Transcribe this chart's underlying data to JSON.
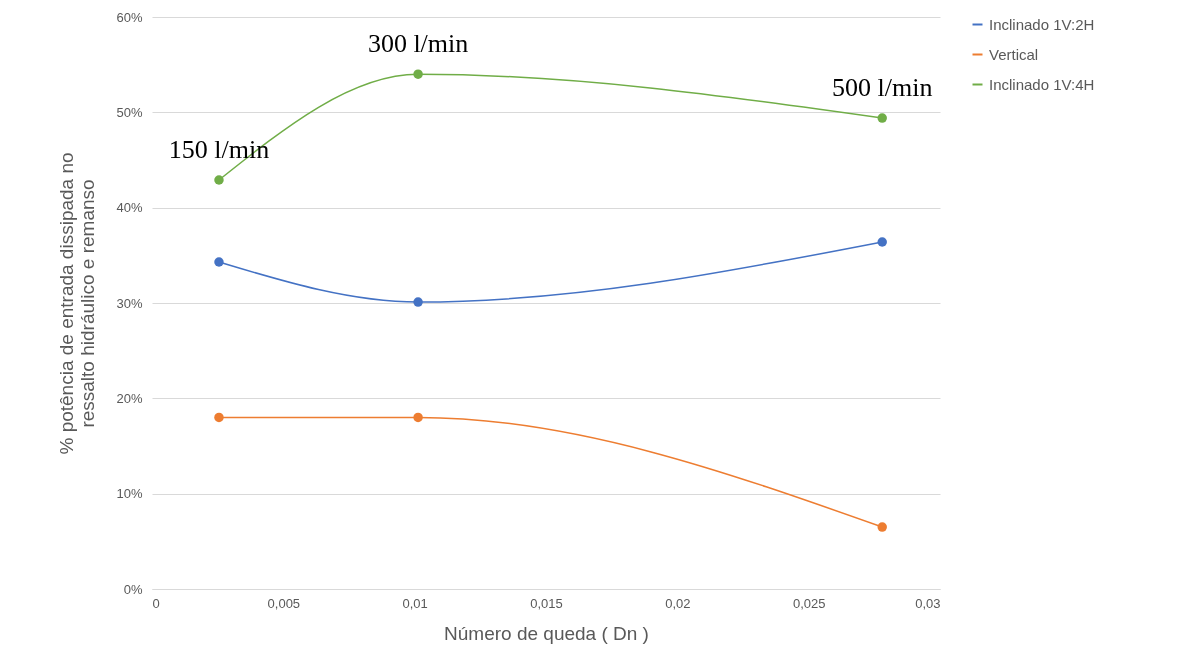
{
  "chart_data": {
    "type": "line",
    "xlabel": "Número de queda ( Dn )",
    "ylabel": "% potência de entrada dissipada no ressalto hidráulico e remanso",
    "x": [
      0.00255,
      0.01013,
      0.0278
    ],
    "series": [
      {
        "name": "Inclinado 1V:2H",
        "color": "#4472c4",
        "values": [
          34.3,
          30.1,
          36.4
        ]
      },
      {
        "name": "Vertical",
        "color": "#ed7d31",
        "values": [
          18.0,
          18.0,
          6.5
        ]
      },
      {
        "name": "Inclinado 1V:4H",
        "color": "#70ad47",
        "values": [
          42.9,
          54.0,
          49.4
        ]
      }
    ],
    "xlim": [
      0,
      0.03
    ],
    "xticks": [
      0,
      {
        "value": 0.005,
        "label": "0,005"
      },
      {
        "value": 0.01,
        "label": "0,01"
      },
      {
        "value": 0.015,
        "label": "0,015"
      },
      {
        "value": 0.02,
        "label": "0,02"
      },
      {
        "value": 0.025,
        "label": "0,025"
      },
      {
        "value": 0.03,
        "label": "0,03"
      }
    ],
    "ylim": [
      0,
      60
    ],
    "yticks": [
      {
        "value": 0,
        "label": "0%"
      },
      {
        "value": 10,
        "label": "10%"
      },
      {
        "value": 20,
        "label": "20%"
      },
      {
        "value": 30,
        "label": "30%"
      },
      {
        "value": 40,
        "label": "40%"
      },
      {
        "value": 50,
        "label": "50%"
      },
      {
        "value": 60,
        "label": "60%"
      }
    ],
    "annotations": [
      {
        "text": "150 l/min",
        "x": 0.00255,
        "y": 42.9
      },
      {
        "text": "300 l/min",
        "x": 0.01013,
        "y": 54.0
      },
      {
        "text": "500 l/min",
        "x": 0.0278,
        "y": 49.4
      }
    ],
    "grid": "y",
    "legend": "right",
    "marker": "circle",
    "line_style": "solid"
  }
}
